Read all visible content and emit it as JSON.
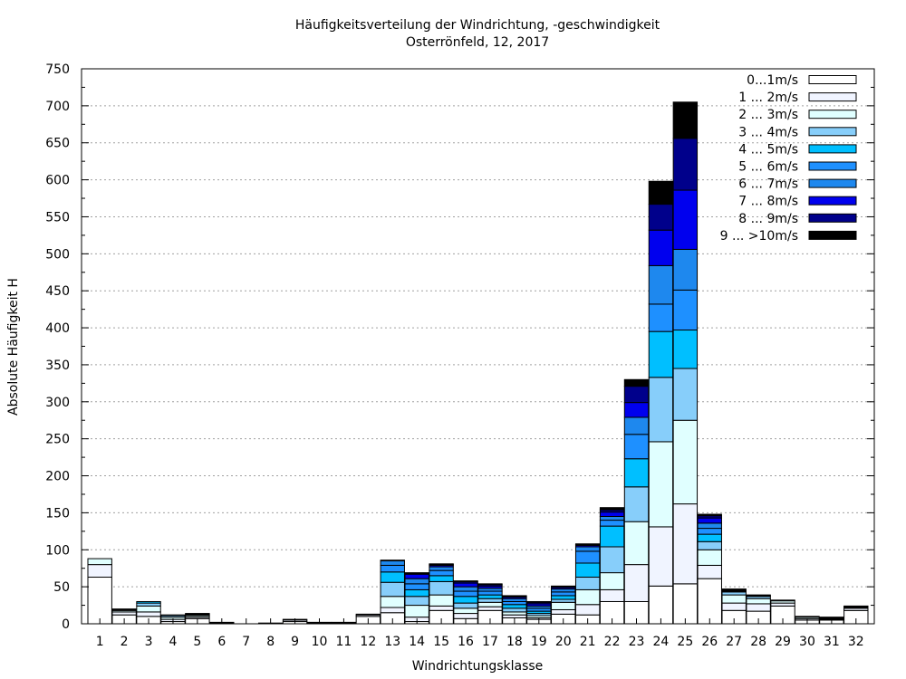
{
  "chart_data": {
    "type": "bar",
    "stacked": true,
    "title": "Häufigkeitsverteilung der Windrichtung, -geschwindigkeit",
    "subtitle": "Osterrönfeld, 12, 2017",
    "xlabel": "Windrichtungsklasse",
    "ylabel": "Absolute Häufigkeit H",
    "ylim": [
      0,
      750
    ],
    "yticks": [
      0,
      50,
      100,
      150,
      200,
      250,
      300,
      350,
      400,
      450,
      500,
      550,
      600,
      650,
      700,
      750
    ],
    "grid": "horizontal-dotted",
    "legend_position": "top-right",
    "categories": [
      "1",
      "2",
      "3",
      "4",
      "5",
      "6",
      "7",
      "8",
      "9",
      "10",
      "11",
      "12",
      "13",
      "14",
      "15",
      "16",
      "17",
      "18",
      "19",
      "20",
      "21",
      "22",
      "23",
      "24",
      "25",
      "26",
      "27",
      "28",
      "29",
      "30",
      "31",
      "32"
    ],
    "series": [
      {
        "name": "0...1m/s",
        "color": "#ffffff",
        "values": [
          63,
          12,
          10,
          3,
          7,
          1,
          0,
          0,
          3,
          1,
          1,
          10,
          15,
          3,
          18,
          7,
          18,
          8,
          6,
          13,
          12,
          30,
          30,
          51,
          54,
          61,
          18,
          17,
          24,
          5,
          5,
          18
        ]
      },
      {
        "name": "1 ... 2m/s",
        "color": "#f0f4ff",
        "values": [
          17,
          4,
          6,
          3,
          2,
          1,
          0,
          1,
          2,
          1,
          1,
          2,
          7,
          6,
          6,
          7,
          5,
          4,
          2,
          6,
          14,
          16,
          50,
          80,
          108,
          18,
          10,
          10,
          4,
          2,
          1,
          3
        ]
      },
      {
        "name": "2 ... 3m/s",
        "color": "#e0ffff",
        "values": [
          8,
          2,
          8,
          3,
          2,
          0,
          0,
          0,
          1,
          0,
          0,
          0,
          15,
          16,
          15,
          7,
          6,
          4,
          3,
          10,
          20,
          23,
          58,
          115,
          113,
          21,
          11,
          7,
          3,
          2,
          1,
          1
        ]
      },
      {
        "name": "3 ... 4m/s",
        "color": "#87cefa",
        "values": [
          0,
          1,
          4,
          2,
          1,
          0,
          0,
          0,
          0,
          0,
          0,
          0,
          19,
          12,
          18,
          7,
          5,
          5,
          3,
          4,
          17,
          35,
          47,
          87,
          70,
          11,
          4,
          3,
          1,
          1,
          1,
          1
        ]
      },
      {
        "name": "4 ... 5m/s",
        "color": "#00bfff",
        "values": [
          0,
          1,
          2,
          1,
          1,
          0,
          0,
          0,
          0,
          0,
          0,
          0,
          14,
          9,
          8,
          9,
          5,
          5,
          3,
          5,
          19,
          28,
          38,
          62,
          52,
          10,
          1,
          1,
          0,
          0,
          0,
          0
        ]
      },
      {
        "name": "5 ... 6m/s",
        "color": "#1e90ff",
        "values": [
          0,
          0,
          0,
          0,
          1,
          0,
          0,
          0,
          0,
          0,
          0,
          0,
          9,
          8,
          7,
          7,
          5,
          4,
          4,
          5,
          16,
          8,
          33,
          37,
          54,
          8,
          1,
          1,
          0,
          0,
          0,
          0
        ]
      },
      {
        "name": "6 ... 7m/s",
        "color": "#1e88ee",
        "values": [
          0,
          0,
          0,
          0,
          0,
          0,
          0,
          0,
          0,
          0,
          0,
          0,
          6,
          7,
          5,
          6,
          4,
          4,
          3,
          4,
          6,
          5,
          23,
          52,
          55,
          7,
          0,
          0,
          0,
          0,
          0,
          0
        ]
      },
      {
        "name": "7 ... 8m/s",
        "color": "#0000ee",
        "values": [
          0,
          0,
          0,
          0,
          0,
          0,
          0,
          0,
          0,
          0,
          0,
          0,
          0,
          6,
          2,
          5,
          3,
          2,
          3,
          2,
          2,
          6,
          20,
          48,
          80,
          7,
          0,
          0,
          0,
          0,
          0,
          0
        ]
      },
      {
        "name": "8 ... 9m/s",
        "color": "#00008b",
        "values": [
          0,
          0,
          0,
          0,
          0,
          0,
          0,
          0,
          0,
          0,
          0,
          0,
          0,
          1,
          1,
          2,
          2,
          1,
          2,
          1,
          1,
          3,
          22,
          35,
          70,
          3,
          0,
          0,
          0,
          0,
          0,
          0
        ]
      },
      {
        "name": "9 ... >10m/s",
        "color": "#000000",
        "values": [
          0,
          0,
          0,
          0,
          0,
          0,
          0,
          0,
          0,
          0,
          0,
          1,
          1,
          1,
          1,
          1,
          1,
          1,
          1,
          1,
          1,
          3,
          9,
          31,
          49,
          2,
          2,
          0,
          0,
          0,
          1,
          1
        ]
      }
    ]
  }
}
